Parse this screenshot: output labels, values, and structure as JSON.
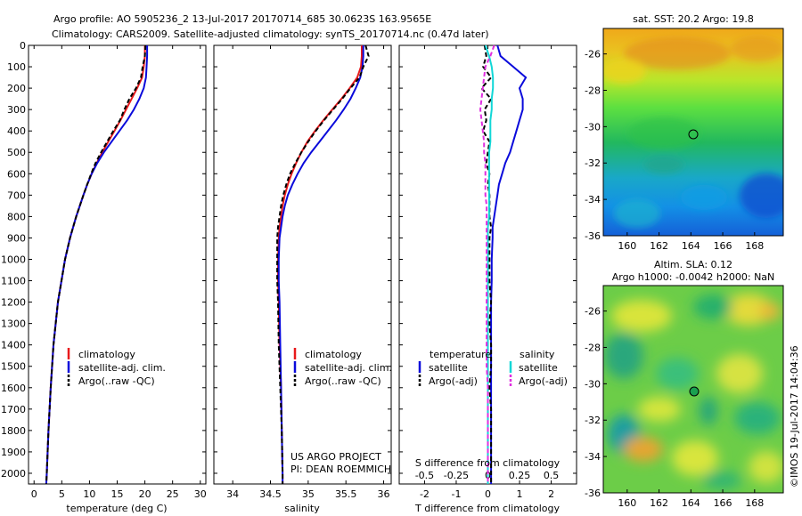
{
  "header": {
    "title_line1": "Argo profile: AO 5905236_2 13-Jul-2017 20170714_685 30.0623S 163.9565E",
    "title_line2": "Climatology: CARS2009. Satellite-adjusted climatology: synTS_20170714.nc (0.47d later)"
  },
  "colors": {
    "climatology": "#e8191b",
    "satellite": "#0a0adb",
    "argo": "#000000",
    "argo_salinity": "#e02ee0",
    "satellite_salinity": "#12d7d7"
  },
  "chart_data": [
    {
      "type": "line",
      "id": "temperature",
      "xlabel": "temperature (deg C)",
      "xlim": [
        -1,
        31
      ],
      "xticks": [
        0,
        5,
        10,
        15,
        20,
        25,
        30
      ],
      "ylim": [
        0,
        2050
      ],
      "yticks": [
        0,
        100,
        200,
        300,
        400,
        500,
        600,
        700,
        800,
        900,
        1000,
        1100,
        1200,
        1300,
        1400,
        1500,
        1600,
        1700,
        1800,
        1900,
        2000
      ],
      "y": [
        0,
        50,
        100,
        150,
        200,
        250,
        300,
        350,
        400,
        450,
        500,
        550,
        600,
        650,
        700,
        800,
        900,
        1000,
        1200,
        1400,
        1600,
        1800,
        2000,
        2050
      ],
      "series": [
        {
          "name": "climatology",
          "color": "#e8191b",
          "x": [
            20.0,
            20.0,
            19.8,
            19.5,
            18.6,
            17.6,
            16.6,
            15.6,
            14.5,
            13.4,
            12.3,
            11.3,
            10.4,
            9.6,
            8.9,
            7.6,
            6.5,
            5.6,
            4.3,
            3.5,
            3.0,
            2.6,
            2.3,
            2.2
          ]
        },
        {
          "name": "satellite-adj. clim.",
          "color": "#0a0adb",
          "x": [
            20.4,
            20.4,
            20.3,
            20.2,
            19.8,
            19.0,
            18.0,
            16.8,
            15.4,
            14.0,
            12.6,
            11.4,
            10.4,
            9.6,
            8.9,
            7.6,
            6.5,
            5.6,
            4.3,
            3.5,
            3.0,
            2.6,
            2.3,
            2.2
          ]
        },
        {
          "name": "Argo(..raw -QC)",
          "color": "#000000",
          "dash": true,
          "x": [
            20.1,
            20.0,
            19.6,
            19.3,
            18.4,
            17.2,
            16.3,
            15.5,
            14.3,
            13.2,
            12.1,
            11.1,
            10.3,
            9.6,
            8.9,
            7.6,
            6.5,
            5.6,
            4.3,
            3.5,
            3.0,
            2.6,
            2.3,
            2.2
          ]
        }
      ],
      "legend": [
        "climatology",
        "satellite-adj. clim.",
        "Argo(..raw -QC)"
      ]
    },
    {
      "type": "line",
      "id": "salinity",
      "xlabel": "salinity",
      "xlim": [
        33.75,
        36.1
      ],
      "xticks": [
        34,
        34.5,
        35,
        35.5,
        36
      ],
      "xtick_labels": [
        "34",
        "34.5",
        "35",
        "35.5",
        "36"
      ],
      "ylim": [
        0,
        2050
      ],
      "y": [
        0,
        50,
        100,
        150,
        200,
        250,
        300,
        350,
        400,
        450,
        500,
        550,
        600,
        650,
        700,
        750,
        800,
        850,
        900,
        1000,
        1100,
        1200,
        1400,
        1600,
        1800,
        2000,
        2050
      ],
      "series": [
        {
          "name": "climatology",
          "color": "#e8191b",
          "x": [
            35.71,
            35.71,
            35.7,
            35.65,
            35.55,
            35.44,
            35.32,
            35.2,
            35.09,
            34.99,
            34.91,
            34.84,
            34.78,
            34.73,
            34.69,
            34.66,
            34.64,
            34.62,
            34.61,
            34.6,
            34.6,
            34.61,
            34.62,
            34.64,
            34.65,
            34.66,
            34.66
          ]
        },
        {
          "name": "satellite-adj. clim.",
          "color": "#0a0adb",
          "x": [
            35.73,
            35.73,
            35.72,
            35.69,
            35.63,
            35.56,
            35.47,
            35.37,
            35.26,
            35.15,
            35.04,
            34.94,
            34.86,
            34.79,
            34.73,
            34.69,
            34.66,
            34.64,
            34.62,
            34.61,
            34.61,
            34.62,
            34.63,
            34.64,
            34.65,
            34.66,
            34.66
          ]
        },
        {
          "name": "Argo(..raw -QC)",
          "color": "#000000",
          "dash": true,
          "x": [
            35.76,
            35.8,
            35.73,
            35.68,
            35.56,
            35.45,
            35.33,
            35.21,
            35.1,
            35.0,
            34.91,
            34.83,
            34.76,
            34.71,
            34.67,
            34.64,
            34.62,
            34.6,
            34.59,
            34.59,
            34.59,
            34.6,
            34.61,
            34.63,
            34.65,
            34.66,
            34.66
          ]
        }
      ],
      "legend": [
        "climatology",
        "satellite-adj. clim.",
        "Argo(..raw -QC)"
      ],
      "annotation": [
        "US ARGO PROJECT",
        "PI: DEAN ROEMMICH"
      ]
    },
    {
      "type": "line",
      "id": "difference",
      "xlabel": "T difference from climatology",
      "top_xlabel": "S difference from climatology",
      "xlim": [
        -2.8,
        2.8
      ],
      "xticks": [
        -2,
        -1,
        0,
        1,
        2
      ],
      "top_xticks": [
        -0.5,
        -0.25,
        0,
        0.25,
        0.5
      ],
      "top_xtick_labels": [
        "-0.5",
        "-0.25",
        "0",
        "0.25",
        "0.5"
      ],
      "ylim": [
        0,
        2050
      ],
      "y": [
        0,
        50,
        100,
        150,
        200,
        250,
        300,
        350,
        400,
        450,
        500,
        550,
        600,
        650,
        700,
        750,
        800,
        850,
        900,
        1000,
        1100,
        1200,
        1300,
        1400,
        1500,
        1600,
        1700,
        1800,
        1900,
        2000,
        2050
      ],
      "series": [
        {
          "name": "temperature satellite",
          "color": "#0a0adb",
          "x": [
            0.3,
            0.4,
            0.8,
            1.2,
            1.0,
            1.1,
            1.1,
            1.0,
            0.9,
            0.8,
            0.7,
            0.55,
            0.45,
            0.35,
            0.3,
            0.25,
            0.2,
            0.15,
            0.15,
            0.12,
            0.12,
            0.1,
            0.1,
            0.1,
            0.1,
            0.1,
            0.1,
            0.1,
            0.1,
            0.1,
            0.1
          ]
        },
        {
          "name": "temperature Argo(-adj)",
          "color": "#000000",
          "dash": true,
          "x": [
            -0.1,
            -0.05,
            -0.15,
            0.1,
            -0.2,
            0.1,
            -0.1,
            -0.05,
            -0.15,
            0.05,
            0.0,
            -0.05,
            0.05,
            0.0,
            0.05,
            0.05,
            0.05,
            0.1,
            0.05,
            0.05,
            0.05,
            0.1,
            0.05,
            0.1,
            0.1,
            0.05,
            0.1,
            0.1,
            0.1,
            0.1,
            0.1
          ]
        },
        {
          "name": "salinity satellite",
          "color": "#12d7d7",
          "x": [
            -0.02,
            0.01,
            0.03,
            0.04,
            0.04,
            0.03,
            0.03,
            0.02,
            0.02,
            0.02,
            0.01,
            0.01,
            0.01,
            0.01,
            0.01,
            0.01,
            0.01,
            0.0,
            0.0,
            0.0,
            0.0,
            0.0,
            0.0,
            0.0,
            0.0,
            0.0,
            0.0,
            0.0,
            0.0,
            0.0,
            0.0
          ]
        },
        {
          "name": "salinity Argo(-adj)",
          "color": "#e02ee0",
          "dash": true,
          "x": [
            0.05,
            0.02,
            -0.02,
            -0.03,
            -0.04,
            -0.05,
            -0.06,
            -0.05,
            -0.04,
            -0.03,
            -0.03,
            -0.02,
            -0.02,
            -0.02,
            -0.02,
            -0.01,
            -0.01,
            -0.01,
            -0.01,
            -0.01,
            -0.01,
            -0.01,
            -0.01,
            -0.01,
            -0.01,
            0.0,
            0.0,
            0.0,
            0.0,
            0.0,
            0.0
          ]
        }
      ],
      "legend_headers": [
        "temperature",
        "salinity"
      ],
      "legend": [
        [
          "satellite",
          "Argo(-adj)"
        ],
        [
          "satellite",
          "Argo(-adj)"
        ]
      ]
    },
    {
      "type": "heatmap",
      "id": "sst_map",
      "title": "sat. SST: 20.2 Argo: 19.8",
      "xlim": [
        158.5,
        169.8
      ],
      "ylim": [
        -36,
        -24.6
      ],
      "xticks": [
        160,
        162,
        164,
        166,
        168
      ],
      "yticks": [
        -26,
        -28,
        -30,
        -32,
        -34,
        -36
      ],
      "float_position": [
        163.9565,
        -30.0623
      ]
    },
    {
      "type": "heatmap",
      "id": "sla_map",
      "title_line1": "Altim. SLA: 0.12",
      "title_line2": "Argo h1000: -0.0042 h2000: NaN",
      "xlim": [
        158.5,
        169.8
      ],
      "ylim": [
        -36,
        -24.6
      ],
      "xticks": [
        160,
        162,
        164,
        166,
        168
      ],
      "yticks": [
        -26,
        -28,
        -30,
        -32,
        -34,
        -36
      ],
      "float_position": [
        163.9565,
        -30.0623
      ],
      "side_label": "©IMOS 19-Jul-2017 14:04:36"
    }
  ]
}
